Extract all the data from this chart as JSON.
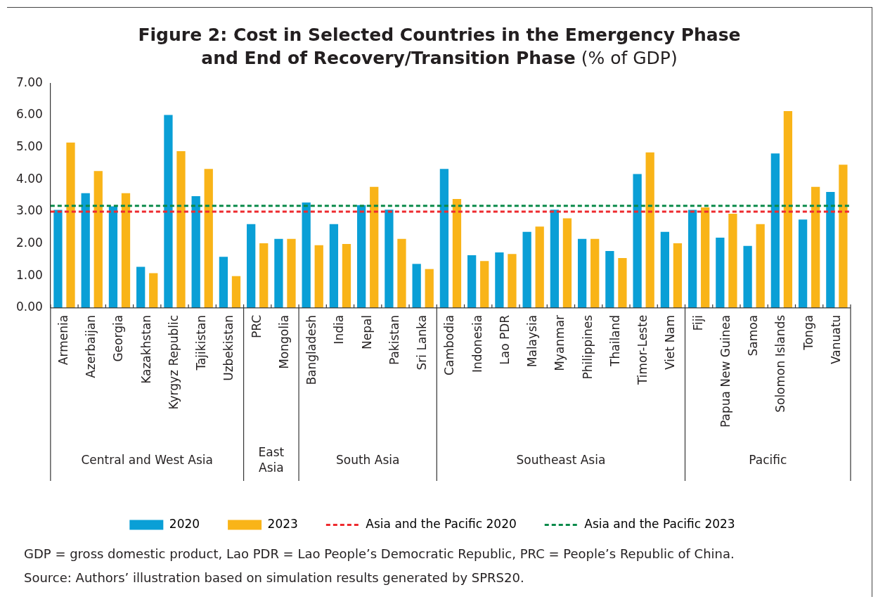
{
  "chart_data": {
    "type": "bar",
    "title": "Figure 2: Cost in Selected Countries in the Emergency Phase and End of Recovery/Transition Phase",
    "subtitle": "(% of GDP)",
    "categories": [
      "Armenia",
      "Azerbaijan",
      "Georgia",
      "Kazakhstan",
      "Kyrgyz Republic",
      "Tajikistan",
      "Uzbekistan",
      "PRC",
      "Mongolia",
      "Bangladesh",
      "India",
      "Nepal",
      "Pakistan",
      "Sri Lanka",
      "Cambodia",
      "Indonesia",
      "Lao PDR",
      "Malaysia",
      "Myanmar",
      "Philippines",
      "Thailand",
      "Timor-Leste",
      "Viet Nam",
      "Fiji",
      "Papua New Guinea",
      "Samoa",
      "Solomon Islands",
      "Tonga",
      "Vanuatu"
    ],
    "series": [
      {
        "name": "2020",
        "color": "#0a9fd6",
        "values": [
          3.05,
          3.57,
          3.16,
          1.28,
          6.01,
          3.48,
          1.59,
          2.61,
          2.15,
          3.28,
          2.61,
          3.2,
          3.06,
          1.37,
          4.33,
          1.64,
          1.73,
          2.37,
          3.06,
          2.15,
          1.77,
          4.17,
          2.37,
          3.05,
          2.19,
          1.93,
          4.81,
          2.75,
          3.61
        ]
      },
      {
        "name": "2023",
        "color": "#f9b418",
        "values": [
          5.15,
          4.26,
          3.57,
          1.08,
          4.88,
          4.33,
          0.99,
          2.01,
          2.15,
          1.95,
          1.99,
          3.77,
          2.15,
          1.21,
          3.39,
          1.46,
          1.68,
          2.53,
          2.79,
          2.15,
          1.55,
          4.84,
          2.01,
          3.13,
          2.93,
          2.61,
          6.13,
          3.77,
          4.46
        ]
      }
    ],
    "ylim": [
      0,
      7
    ],
    "yticks": [
      {
        "value": 0,
        "label": "0.00"
      },
      {
        "value": 1,
        "label": "1.00"
      },
      {
        "value": 2,
        "label": "2.00"
      },
      {
        "value": 3,
        "label": "3.00"
      },
      {
        "value": 4,
        "label": "4.00"
      },
      {
        "value": 5,
        "label": "5.00"
      },
      {
        "value": 6,
        "label": "6.00"
      },
      {
        "value": 7,
        "label": "7.00"
      }
    ],
    "ref_lines": [
      {
        "axis": "y",
        "value": 3.0,
        "label": "Asia and the Pacific 2020",
        "color": "#ee2a2e",
        "line_style": "dashed"
      },
      {
        "axis": "y",
        "value": 3.18,
        "label": "Asia and the Pacific 2023",
        "color": "#0a8a4a",
        "line_style": "dashed"
      }
    ],
    "annotations": [
      "Central and West Asia",
      "East Asia",
      "South Asia",
      "Southeast Asia",
      "Pacific",
      "GDP = gross domestic product, Lao PDR = Lao People’s Democratic Republic, PRC = People’s Republic of China.",
      "Source: Authors’ illustration based on simulation results generated by SPRS20."
    ],
    "grid": false,
    "legend": "bottom"
  }
}
